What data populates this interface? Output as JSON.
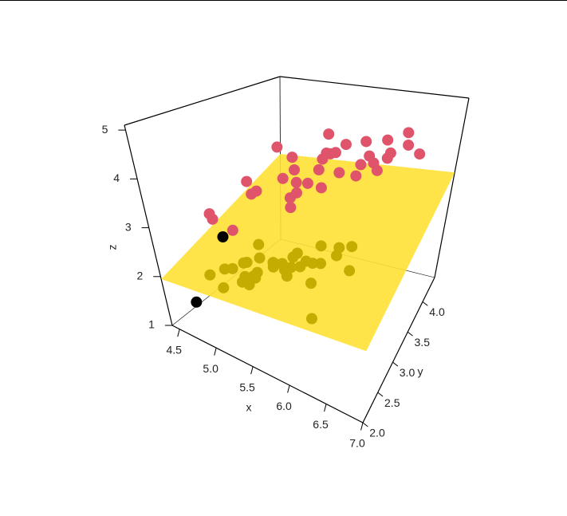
{
  "chart_data": {
    "type": "scatter3d",
    "x_label": "x",
    "y_label": "y",
    "z_label": "z",
    "xlim": [
      4.4,
      7.0
    ],
    "ylim": [
      2.0,
      4.4
    ],
    "zlim": [
      1.0,
      5.1
    ],
    "xticks": [
      {
        "value": 4.5,
        "label": "4.5"
      },
      {
        "value": 5.0,
        "label": "5.0"
      },
      {
        "value": 5.5,
        "label": "5.5"
      },
      {
        "value": 6.0,
        "label": "6.0"
      },
      {
        "value": 6.5,
        "label": "6.5"
      },
      {
        "value": 7.0,
        "label": "7.0"
      }
    ],
    "yticks": [
      {
        "value": 2.0,
        "label": "2.0"
      },
      {
        "value": 2.5,
        "label": "2.5"
      },
      {
        "value": 3.0,
        "label": "3.0"
      },
      {
        "value": 3.5,
        "label": "3.5"
      },
      {
        "value": 4.0,
        "label": "4.0"
      }
    ],
    "zticks": [
      1,
      2,
      3,
      4,
      5
    ],
    "plane": {
      "color": "#ffe135",
      "z": [
        1.95,
        2.15,
        3.4,
        3.15
      ]
    },
    "series": [
      {
        "color": "#df536b",
        "points": [
          [
            5.5,
            2.4,
            4.0
          ],
          [
            5.7,
            2.6,
            4.2
          ],
          [
            5.6,
            3.0,
            4.1
          ],
          [
            5.8,
            2.7,
            4.1
          ],
          [
            6.0,
            2.2,
            4.0
          ],
          [
            6.1,
            2.8,
            4.7
          ],
          [
            6.3,
            2.5,
            4.9
          ],
          [
            6.4,
            2.9,
            4.3
          ],
          [
            6.6,
            3.0,
            4.4
          ],
          [
            6.8,
            2.8,
            4.8
          ],
          [
            6.7,
            3.1,
            4.7
          ],
          [
            6.3,
            3.3,
            4.7
          ],
          [
            5.9,
            3.0,
            4.2
          ],
          [
            6.2,
            2.9,
            4.3
          ],
          [
            6.5,
            2.8,
            4.6
          ],
          [
            6.9,
            3.1,
            4.9
          ],
          [
            5.5,
            2.3,
            4.0
          ],
          [
            5.7,
            2.8,
            4.5
          ],
          [
            6.0,
            2.9,
            4.5
          ],
          [
            6.1,
            3.0,
            4.6
          ],
          [
            6.4,
            3.2,
            4.5
          ],
          [
            6.7,
            3.0,
            5.0
          ],
          [
            6.0,
            3.4,
            4.5
          ],
          [
            5.6,
            2.9,
            3.6
          ],
          [
            5.8,
            2.7,
            3.9
          ],
          [
            6.2,
            2.2,
            4.5
          ],
          [
            6.6,
            2.9,
            4.6
          ],
          [
            7.0,
            3.2,
            4.7
          ],
          [
            5.9,
            3.2,
            4.8
          ],
          [
            6.3,
            2.3,
            4.4
          ],
          [
            5.2,
            2.7,
            3.9
          ],
          [
            5.0,
            2.3,
            3.3
          ],
          [
            4.9,
            2.4,
            3.3
          ],
          [
            5.1,
            2.5,
            3.0
          ],
          [
            5.4,
            3.0,
            4.5
          ],
          [
            6.8,
            3.3,
            5.0
          ]
        ]
      },
      {
        "color": "#c4ac00",
        "points": [
          [
            5.1,
            3.5,
            1.4
          ],
          [
            4.9,
            3.0,
            1.4
          ],
          [
            4.7,
            3.2,
            1.3
          ],
          [
            4.6,
            3.1,
            1.5
          ],
          [
            5.0,
            3.6,
            1.4
          ],
          [
            5.4,
            3.9,
            1.7
          ],
          [
            4.6,
            3.4,
            1.4
          ],
          [
            5.0,
            3.4,
            1.5
          ],
          [
            4.4,
            2.9,
            1.4
          ],
          [
            4.9,
            3.1,
            1.5
          ],
          [
            5.4,
            3.7,
            1.5
          ],
          [
            4.8,
            3.4,
            1.6
          ],
          [
            4.8,
            3.0,
            1.4
          ],
          [
            4.5,
            3.0,
            1.1
          ],
          [
            5.8,
            4.0,
            1.2
          ],
          [
            5.7,
            4.2,
            1.5
          ],
          [
            5.4,
            3.9,
            1.3
          ],
          [
            5.7,
            3.8,
            1.7
          ],
          [
            5.1,
            3.8,
            1.5
          ],
          [
            5.4,
            3.4,
            1.7
          ],
          [
            5.1,
            3.7,
            1.5
          ],
          [
            4.6,
            3.6,
            1.0
          ],
          [
            5.1,
            3.3,
            1.7
          ],
          [
            4.8,
            3.4,
            1.9
          ],
          [
            5.0,
            3.0,
            1.6
          ],
          [
            5.0,
            3.4,
            1.6
          ],
          [
            5.2,
            3.5,
            1.5
          ],
          [
            5.2,
            3.4,
            1.4
          ],
          [
            4.7,
            3.2,
            1.6
          ],
          [
            5.5,
            4.2,
            1.4
          ],
          [
            5.5,
            3.5,
            1.3
          ],
          [
            4.4,
            3.2,
            1.3
          ],
          [
            5.3,
            3.7,
            1.5
          ],
          [
            5.8,
            3.0,
            1.2
          ]
        ]
      },
      {
        "color": "#000000",
        "points": [
          [
            4.6,
            2.3,
            1.4
          ],
          [
            5.1,
            2.3,
            3.0
          ]
        ]
      }
    ]
  }
}
